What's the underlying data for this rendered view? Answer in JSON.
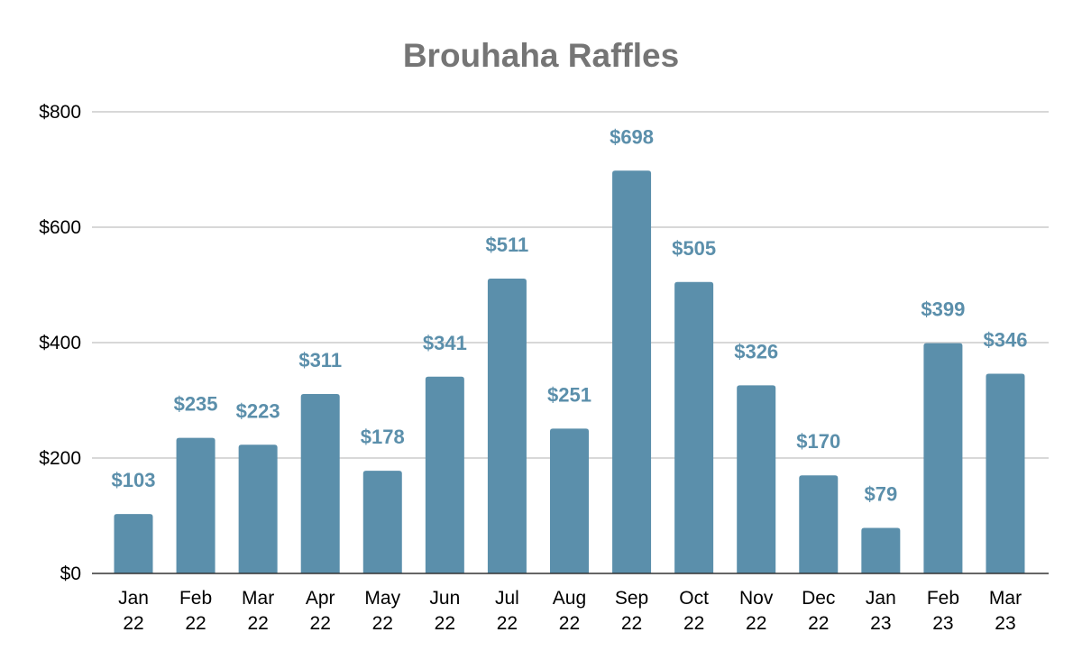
{
  "chart_data": {
    "type": "bar",
    "title": "Brouhaha Raffles",
    "xlabel": "",
    "ylabel": "",
    "categories": [
      [
        "Jan",
        "22"
      ],
      [
        "Feb",
        "22"
      ],
      [
        "Mar",
        "22"
      ],
      [
        "Apr",
        "22"
      ],
      [
        "May",
        "22"
      ],
      [
        "Jun",
        "22"
      ],
      [
        "Jul",
        "22"
      ],
      [
        "Aug",
        "22"
      ],
      [
        "Sep",
        "22"
      ],
      [
        "Oct",
        "22"
      ],
      [
        "Nov",
        "22"
      ],
      [
        "Dec",
        "22"
      ],
      [
        "Jan",
        "23"
      ],
      [
        "Feb",
        "23"
      ],
      [
        "Mar",
        "23"
      ]
    ],
    "values": [
      103,
      235,
      223,
      311,
      178,
      341,
      511,
      251,
      698,
      505,
      326,
      170,
      79,
      399,
      346
    ],
    "data_labels": [
      "$103",
      "$235",
      "$223",
      "$311",
      "$178",
      "$341",
      "$511",
      "$251",
      "$698",
      "$505",
      "$326",
      "$170",
      "$79",
      "$399",
      "$346"
    ],
    "ylim": [
      0,
      800
    ],
    "y_ticks": [
      0,
      200,
      400,
      600,
      800
    ],
    "y_tick_labels": [
      "$0",
      "$200",
      "$400",
      "$600",
      "$800"
    ],
    "grid": true,
    "legend": "none",
    "colors": {
      "bar": "#5b8fab",
      "data_label": "#5b8fab",
      "title": "#757575",
      "gridline": "#cccccc"
    }
  }
}
